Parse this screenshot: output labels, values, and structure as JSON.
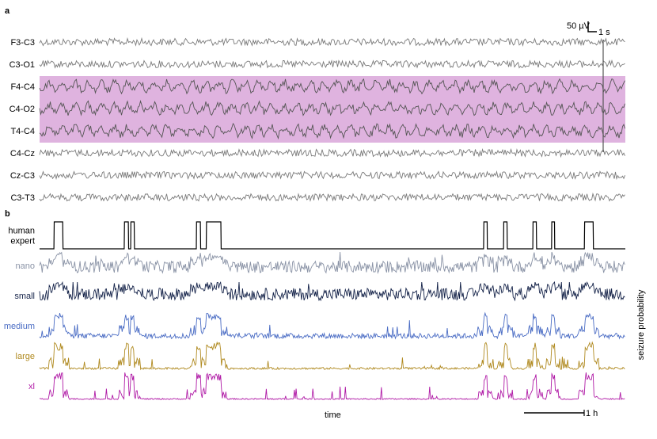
{
  "figure": {
    "panel_a": "a",
    "panel_b": "b",
    "scale_bar_voltage": "50 µV",
    "scale_bar_time": "1 s",
    "time_label": "time",
    "time_scale_bar": "1 h",
    "y_axis_label": "seizure probability"
  },
  "chart_data": [
    {
      "type": "line",
      "panel": "a",
      "channels": [
        "F3-C3",
        "C3-O1",
        "F4-C4",
        "C4-O2",
        "T4-C4",
        "C4-Cz",
        "Cz-C3",
        "C3-T3"
      ],
      "highlighted_channels": [
        "F4-C4",
        "C4-O2",
        "T4-C4"
      ],
      "highlight_color": "#dfb3df",
      "trace_color": "#7a7a7a"
    },
    {
      "type": "line",
      "panel": "b",
      "ylabel": "seizure probability",
      "xlabel": "time",
      "x_range": [
        0,
        1
      ],
      "human_expert_seizure_intervals": [
        [
          0.025,
          0.04
        ],
        [
          0.145,
          0.152
        ],
        [
          0.156,
          0.162
        ],
        [
          0.268,
          0.275
        ],
        [
          0.285,
          0.31
        ],
        [
          0.758,
          0.764
        ],
        [
          0.792,
          0.798
        ],
        [
          0.842,
          0.848
        ],
        [
          0.874,
          0.879
        ],
        [
          0.93,
          0.945
        ]
      ],
      "series": [
        {
          "name": "human\nexpert",
          "color": "#000000"
        },
        {
          "name": "nano",
          "color": "#8a93a6"
        },
        {
          "name": "small",
          "color": "#16244a"
        },
        {
          "name": "medium",
          "color": "#4a6cc4"
        },
        {
          "name": "large",
          "color": "#b08a20"
        },
        {
          "name": "xl",
          "color": "#b01aa6"
        }
      ]
    }
  ]
}
